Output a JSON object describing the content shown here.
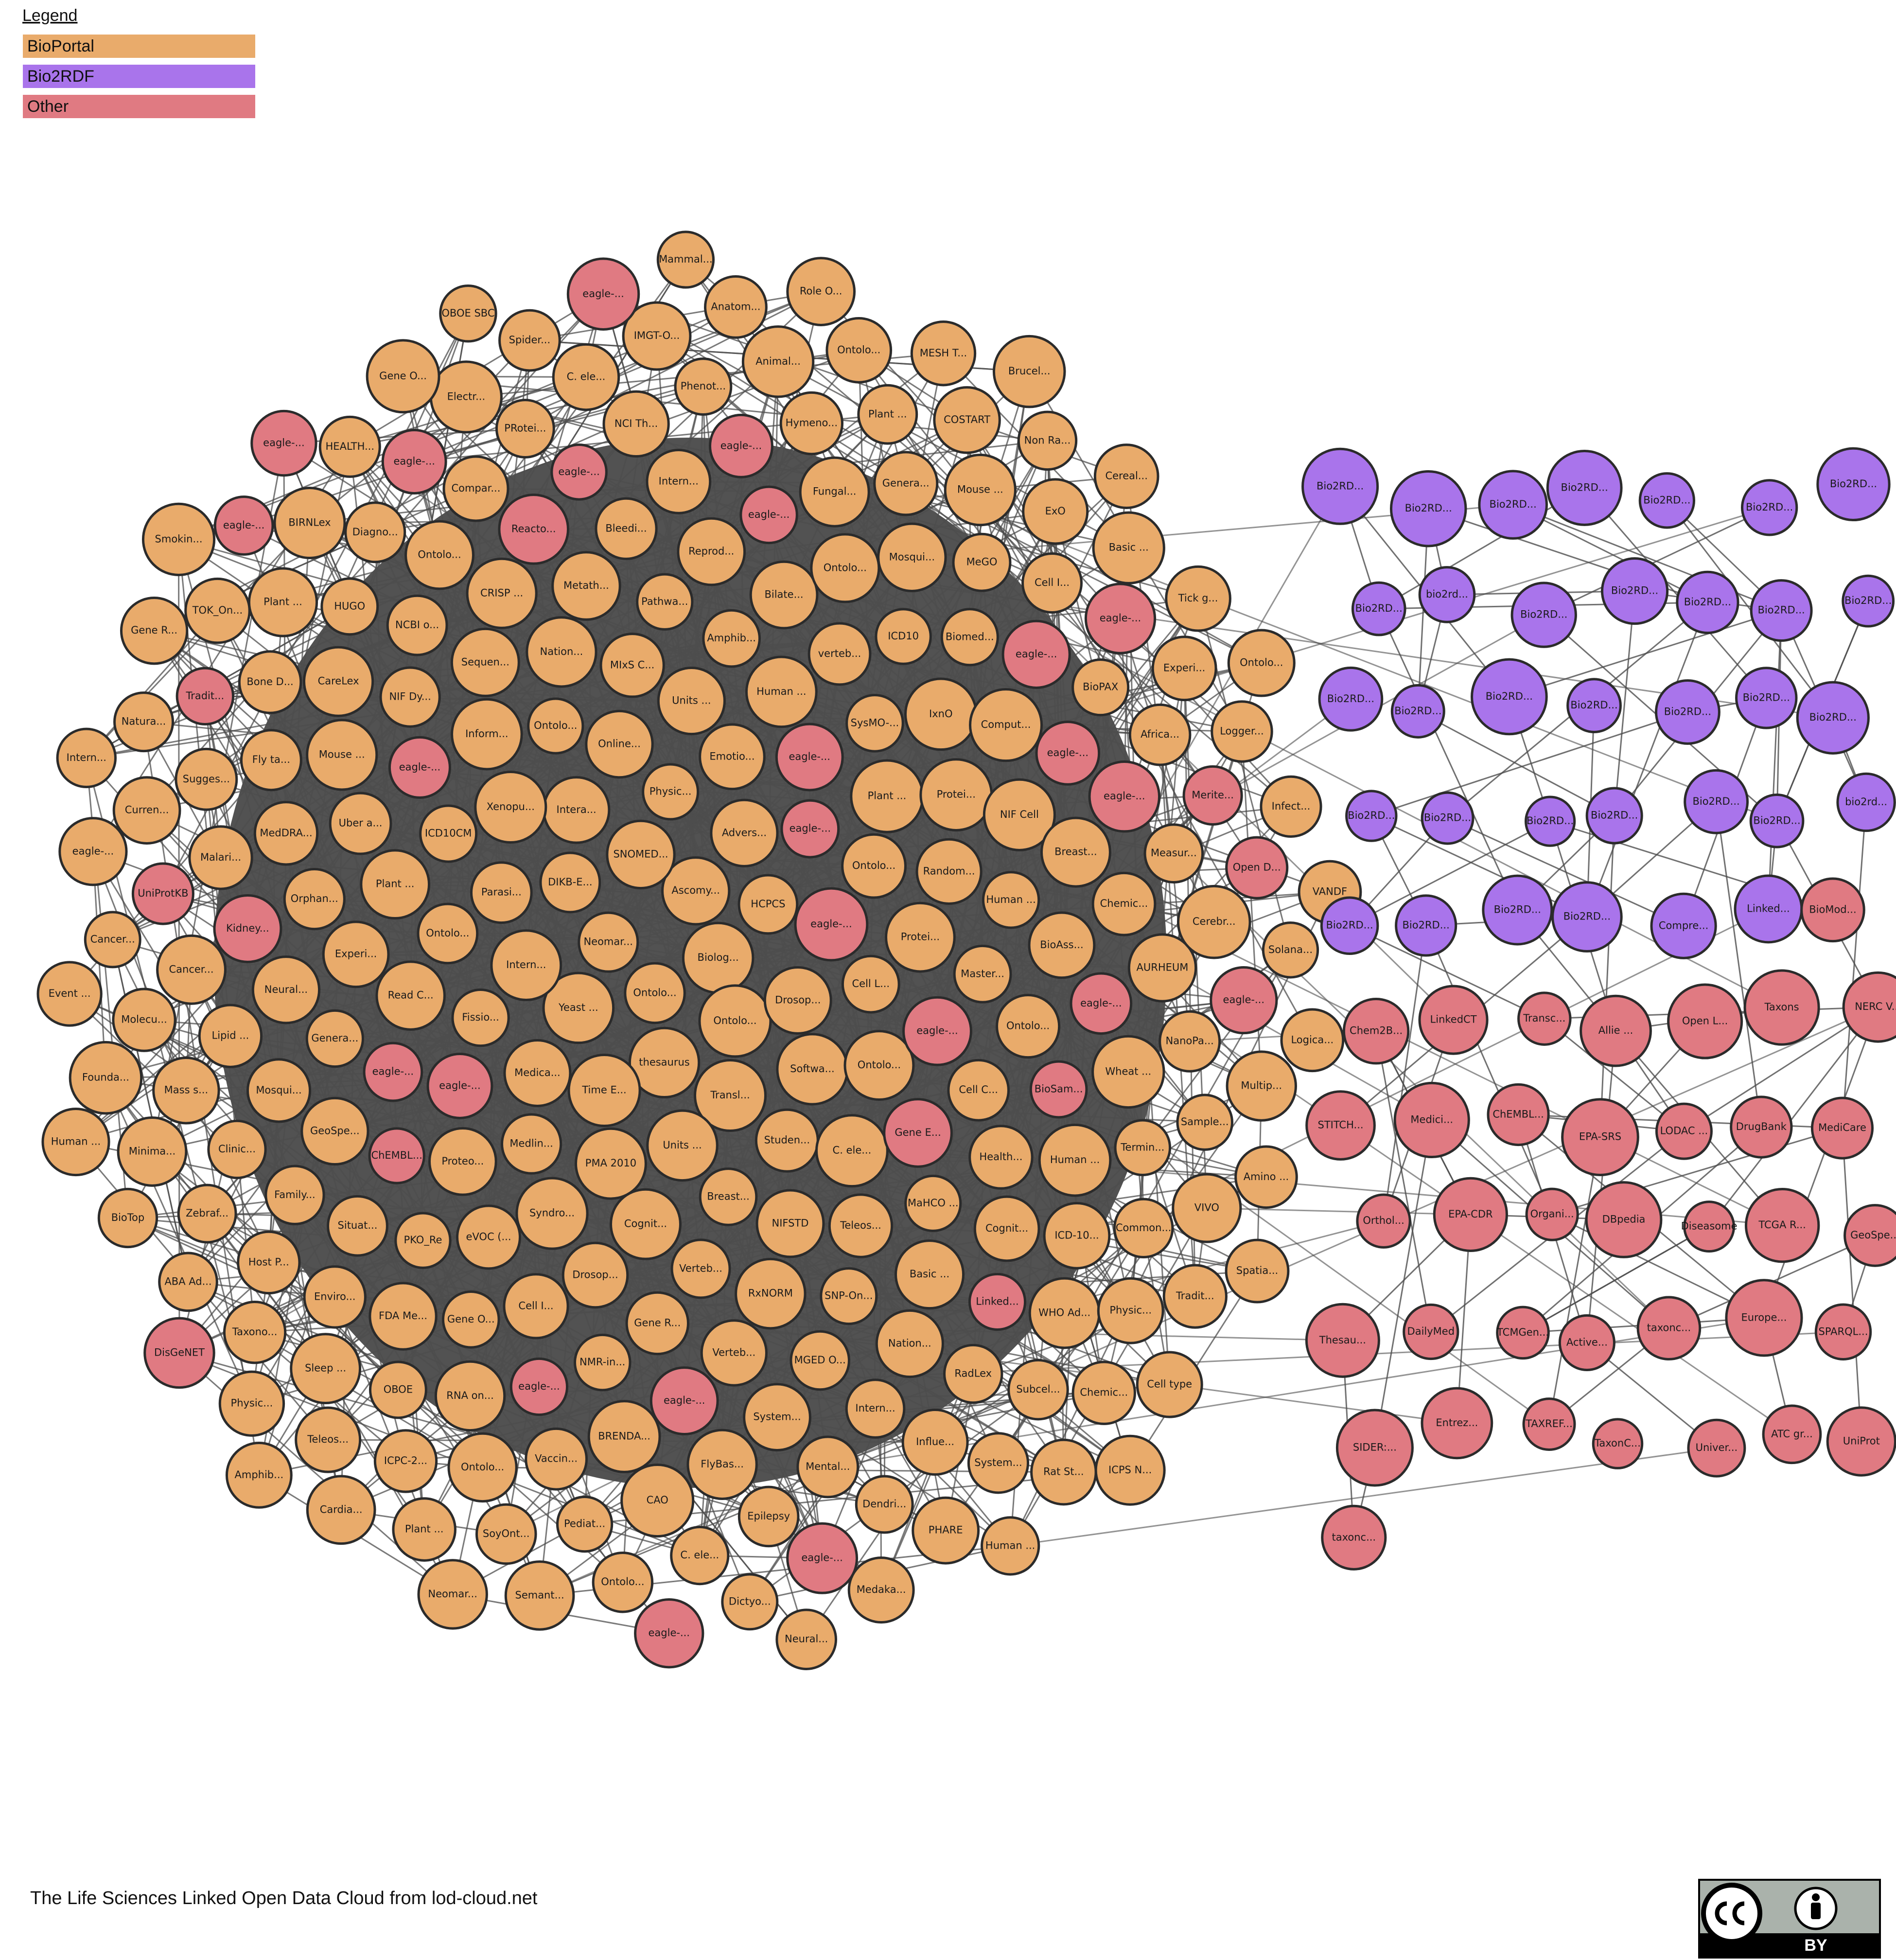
{
  "legend_title": "Legend",
  "footer": "The Life Sciences Linked Open Data Cloud from lod-cloud.net",
  "license": "BY",
  "groups": [
    {
      "name": "BioPortal",
      "color": "#e9ab6b",
      "nodes": [
        "Wheat ...",
        "Plant ...",
        "IMGT-O...",
        "thesaurus",
        "HUGO",
        "GeoSpe...",
        "Epilepsy",
        "SoyOnt...",
        "ABA Ad...",
        "Solana...",
        "Measur...",
        "System...",
        "Xenopu...",
        "Pathwa...",
        "Protei...",
        "OBOE",
        "Metath...",
        "Biomed...",
        "ICD10",
        "VIVO",
        "MeGO",
        "Anatom...",
        "Proteo...",
        "AURHEUM",
        "Biolog...",
        "BioPAX",
        "Lipid ...",
        "Dictyo...",
        "Amino ...",
        "Intern...",
        "Units ...",
        "SysMO-...",
        "Chemic...",
        "Fissio...",
        "Animal...",
        "Plant ...",
        "Random...",
        "Physic...",
        "Minima...",
        "Breast...",
        "Softwa...",
        "NCI Th...",
        "Natura...",
        "Subcel...",
        "Amphib...",
        "Chemic...",
        "Ascomy...",
        "PMA 2010",
        "MIxS C...",
        "Termin...",
        "Mosqui...",
        "Verteb...",
        "Intern...",
        "Orphan...",
        "BioTop",
        "MGED O...",
        "Ontolo...",
        "Neural...",
        "RxNORM",
        "Online...",
        "Cell L...",
        "Plant ...",
        "Nation...",
        "Breast...",
        "HEALTH...",
        "C. ele...",
        "Teleos...",
        "NMR-in...",
        "Mental...",
        "PHARE",
        "Zebraf...",
        "Advers...",
        "verteb...",
        "Human ...",
        "Human ...",
        "Vaccin...",
        "Sugges...",
        "BioAss...",
        "MaHCO ...",
        "Taxono...",
        "IxnO",
        "Intern...",
        "Amphib...",
        "Gene R...",
        "Transl...",
        "Ontolo...",
        "Teleos...",
        "Human ...",
        "Medica...",
        "Ontolo...",
        "Reprod...",
        "Cancer...",
        "CAO",
        "CareLex",
        "Non Ra...",
        "Curren...",
        "Units ...",
        "Ontolo...",
        "Spider...",
        "Time E...",
        "Influe...",
        "Medlin...",
        "NIF Cell",
        "Neural...",
        "Uber a...",
        "Bone D...",
        "Experi...",
        "Basic ...",
        "Bilate...",
        "MedDRA...",
        "Mass s...",
        "Enviro...",
        "Basic ...",
        "Physic...",
        "BRENDA...",
        "COSTART",
        "Cancer...",
        "eVOC (...",
        "Malari...",
        "Read C...",
        "eagle-...",
        "CRISP ...",
        "Clinic...",
        "Bleedi...",
        "Africa...",
        "Drosop...",
        "Emotio...",
        "Smokin...",
        "Gene O...",
        "Sample...",
        "Studen...",
        "TOK_On...",
        "Ontolo...",
        "Medaka...",
        "BIRNLex",
        "Ontolo...",
        "System...",
        "Cognit...",
        "Cell C...",
        "Compar...",
        "Master...",
        "Mosqui...",
        "Physic...",
        "NCBI o...",
        "Logica...",
        "Plant ...",
        "Tradit...",
        "Cell I...",
        "MESH T...",
        "Genera...",
        "Cardia...",
        "Comput...",
        "DIKB-E...",
        "Diagno...",
        "Hymeno...",
        "Mouse ...",
        "Syndro...",
        "Spatia...",
        "Inform...",
        "Sleep ...",
        "Verteb...",
        "Semant...",
        "Protei...",
        "NIFSTD",
        "Gene O...",
        "Cell type",
        "Drosop...",
        "Cerebr...",
        "Human ...",
        "Dendri...",
        "Ontolo...",
        "Tick g...",
        "Cognit...",
        "PRotei...",
        "PKO_Re",
        "RadLex",
        "SNOMED...",
        "Ontolo...",
        "Mammal...",
        "Genera...",
        "Neomar...",
        "Fly ta...",
        "ExO",
        "Common...",
        "Intera...",
        "RNA on...",
        "NIF Dy...",
        "Brucel...",
        "Rat St...",
        "ICPC-2...",
        "Ontolo...",
        "Ontolo...",
        "Ontolo...",
        "Cereal...",
        "Gene R...",
        "Nation...",
        "Fungal...",
        "Human ...",
        "Multip...",
        "Experi...",
        "Cell I...",
        "Sequen...",
        "SNP-On...",
        "Parasi...",
        "Situat...",
        "Phenot...",
        "Health...",
        "Host P...",
        "Pediat...",
        "Neomar...",
        "FlyBas...",
        "Plant ...",
        "Yeast ...",
        "WHO Ad...",
        "Mouse ...",
        "Event ...",
        "Logger...",
        "Ontolo...",
        "ICPS N...",
        "Intern...",
        "HCPCS",
        "OBOE SBC",
        "Family...",
        "FDA Me...",
        "Infect...",
        "Role O...",
        "C. ele...",
        "Molecu...",
        "ICD10CM",
        "Ontolo...",
        "NanoPa...",
        "Founda...",
        "C. ele...",
        "Electr...",
        "VANDF",
        "ICD-10..."
      ]
    },
    {
      "name": "Bio2RDF",
      "color": "#a974eb",
      "nodes": [
        "Bio2RD...",
        "Bio2RD...",
        "Bio2RD...",
        "Bio2RD...",
        "Bio2RD...",
        "Bio2RD...",
        "Bio2RD...",
        "Bio2RD...",
        "bio2rd...",
        "Bio2RD...",
        "Bio2RD...",
        "Bio2RD...",
        "Bio2RD...",
        "Bio2RD...",
        "Bio2RD...",
        "Bio2RD...",
        "Bio2RD...",
        "Bio2RD...",
        "Bio2RD...",
        "Bio2RD...",
        "Bio2RD...",
        "Bio2RD...",
        "Bio2RD...",
        "Bio2RD...",
        "Bio2RD...",
        "Bio2RD...",
        "Bio2RD...",
        "bio2rd...",
        "Bio2RD...",
        "Bio2RD...",
        "Bio2RD...",
        "Bio2RD...",
        "Compre...",
        "Linked..."
      ]
    },
    {
      "name": "Other",
      "color": "#e07a82",
      "nodes": [
        "eagle-...",
        "eagle-...",
        "eagle-...",
        "eagle-...",
        "eagle-...",
        "eagle-...",
        "eagle-...",
        "eagle-...",
        "eagle-...",
        "eagle-...",
        "eagle-...",
        "eagle-...",
        "eagle-...",
        "eagle-...",
        "eagle-...",
        "eagle-...",
        "eagle-...",
        "eagle-...",
        "eagle-...",
        "eagle-...",
        "eagle-...",
        "eagle-...",
        "eagle-...",
        "eagle-...",
        "Merite...",
        "Linked...",
        "BioSam...",
        "Gene E...",
        "DisGeNET",
        "ChEMBL...",
        "Reacto...",
        "UniProtKB",
        "Kidney...",
        "Tradit...",
        "Open D...",
        "BioMod...",
        "Chem2B...",
        "LinkedCT",
        "Transc...",
        "Allie ...",
        "Open L...",
        "Taxons",
        "NERC V...",
        "STITCH...",
        "Medici...",
        "ChEMBL...",
        "EPA-SRS",
        "LODAC ...",
        "DrugBank",
        "MediCare",
        "Orthol...",
        "EPA-CDR",
        "Organi...",
        "DBpedia",
        "Diseasome",
        "TCGA R...",
        "GeoSpe...",
        "Thesau...",
        "DailyMed",
        "TCMGen...",
        "Active...",
        "taxonc...",
        "Europe...",
        "SPARQL...",
        "SIDER:...",
        "Entrez...",
        "TAXREF...",
        "TaxonC...",
        "Univer...",
        "ATC gr...",
        "UniProt",
        "taxonc..."
      ]
    }
  ]
}
